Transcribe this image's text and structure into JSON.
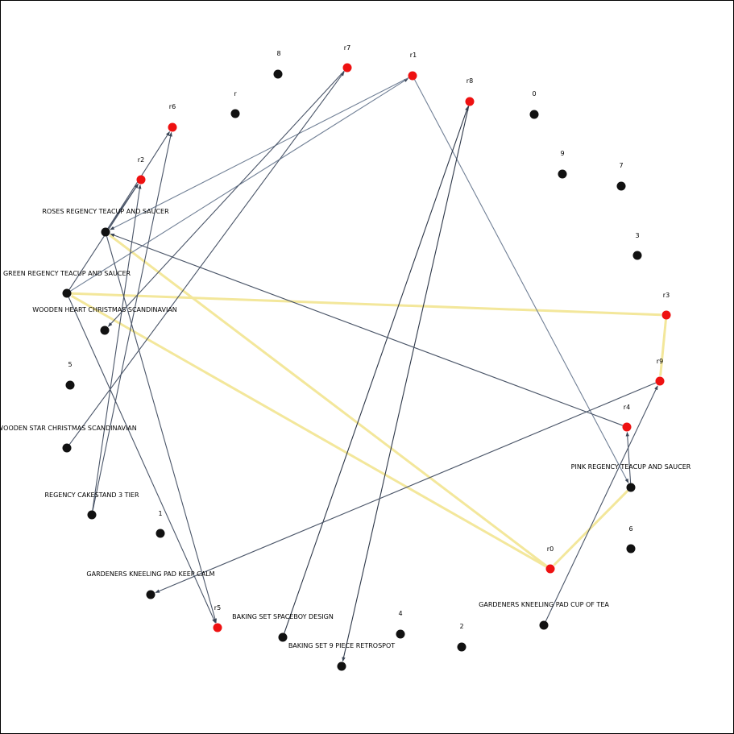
{
  "diagram": {
    "type": "association-rules-network",
    "colors": {
      "item_node": "#111111",
      "rule_node": "#ee1111",
      "edge_default": "#4a5568",
      "edge_light": "#718096",
      "edge_dark": "#2d3748",
      "edge_highlight": "#f3e79b"
    },
    "nodes": [
      {
        "id": "8",
        "label": "8",
        "kind": "item"
      },
      {
        "id": "r7",
        "label": "r7",
        "kind": "rule"
      },
      {
        "id": "r1",
        "label": "r1",
        "kind": "rule"
      },
      {
        "id": "r8",
        "label": "r8",
        "kind": "rule"
      },
      {
        "id": "0",
        "label": "0",
        "kind": "item"
      },
      {
        "id": "r",
        "label": "r",
        "kind": "item"
      },
      {
        "id": "r6",
        "label": "r6",
        "kind": "rule"
      },
      {
        "id": "9",
        "label": "9",
        "kind": "item"
      },
      {
        "id": "7",
        "label": "7",
        "kind": "item"
      },
      {
        "id": "r2",
        "label": "r2",
        "kind": "rule"
      },
      {
        "id": "roses",
        "label": "ROSES REGENCY TEACUP AND SAUCER",
        "kind": "item"
      },
      {
        "id": "3",
        "label": "3",
        "kind": "item"
      },
      {
        "id": "green",
        "label": "GREEN REGENCY TEACUP AND SAUCER",
        "kind": "item"
      },
      {
        "id": "r3",
        "label": "r3",
        "kind": "rule"
      },
      {
        "id": "heart",
        "label": "WOODEN HEART CHRISTMAS SCANDINAVIAN",
        "kind": "item"
      },
      {
        "id": "5",
        "label": "5",
        "kind": "item"
      },
      {
        "id": "r9",
        "label": "r9",
        "kind": "rule"
      },
      {
        "id": "star",
        "label": "WOODEN STAR CHRISTMAS SCANDINAVIAN",
        "kind": "item"
      },
      {
        "id": "r4",
        "label": "r4",
        "kind": "rule"
      },
      {
        "id": "pink",
        "label": "PINK REGENCY TEACUP AND SAUCER",
        "kind": "item"
      },
      {
        "id": "cakestand",
        "label": "REGENCY CAKESTAND 3 TIER",
        "kind": "item"
      },
      {
        "id": "1",
        "label": "1",
        "kind": "item"
      },
      {
        "id": "6",
        "label": "6",
        "kind": "item"
      },
      {
        "id": "r0",
        "label": "r0",
        "kind": "rule"
      },
      {
        "id": "padcalm",
        "label": "GARDENERS KNEELING PAD KEEP CALM",
        "kind": "item"
      },
      {
        "id": "padtea",
        "label": "GARDENERS KNEELING PAD CUP OF TEA",
        "kind": "item"
      },
      {
        "id": "r5",
        "label": "r5",
        "kind": "rule"
      },
      {
        "id": "4",
        "label": "4",
        "kind": "item"
      },
      {
        "id": "spaceboy",
        "label": "BAKING SET SPACEBOY DESIGN",
        "kind": "item"
      },
      {
        "id": "2",
        "label": "2",
        "kind": "item"
      },
      {
        "id": "retrospot",
        "label": "BAKING SET 9 PIECE RETROSPOT",
        "kind": "item"
      }
    ],
    "edges": [
      {
        "from": "r0",
        "to": "green",
        "style": "highlight"
      },
      {
        "from": "r0",
        "to": "roses",
        "style": "highlight"
      },
      {
        "from": "pink",
        "to": "r0",
        "style": "highlight"
      },
      {
        "from": "green",
        "to": "r3",
        "style": "highlight"
      },
      {
        "from": "r3",
        "to": "r9",
        "style": "highlight"
      },
      {
        "from": "green",
        "to": "r1",
        "style": "light"
      },
      {
        "from": "r1",
        "to": "roses",
        "style": "light"
      },
      {
        "from": "r1",
        "to": "pink",
        "style": "light"
      },
      {
        "from": "green",
        "to": "r2",
        "style": "default"
      },
      {
        "from": "roses",
        "to": "r2",
        "style": "default"
      },
      {
        "from": "cakestand",
        "to": "r2",
        "style": "default"
      },
      {
        "from": "cakestand",
        "to": "r6",
        "style": "default"
      },
      {
        "from": "roses",
        "to": "r6",
        "style": "default"
      },
      {
        "from": "star",
        "to": "r7",
        "style": "default"
      },
      {
        "from": "r7",
        "to": "heart",
        "style": "default"
      },
      {
        "from": "spaceboy",
        "to": "r8",
        "style": "dark"
      },
      {
        "from": "r8",
        "to": "retrospot",
        "style": "dark"
      },
      {
        "from": "r4",
        "to": "roses",
        "style": "default"
      },
      {
        "from": "pink",
        "to": "r4",
        "style": "default"
      },
      {
        "from": "padtea",
        "to": "r9",
        "style": "default"
      },
      {
        "from": "r9",
        "to": "padcalm",
        "style": "default"
      },
      {
        "from": "green",
        "to": "r5",
        "style": "default"
      },
      {
        "from": "roses",
        "to": "r5",
        "style": "default"
      }
    ]
  }
}
